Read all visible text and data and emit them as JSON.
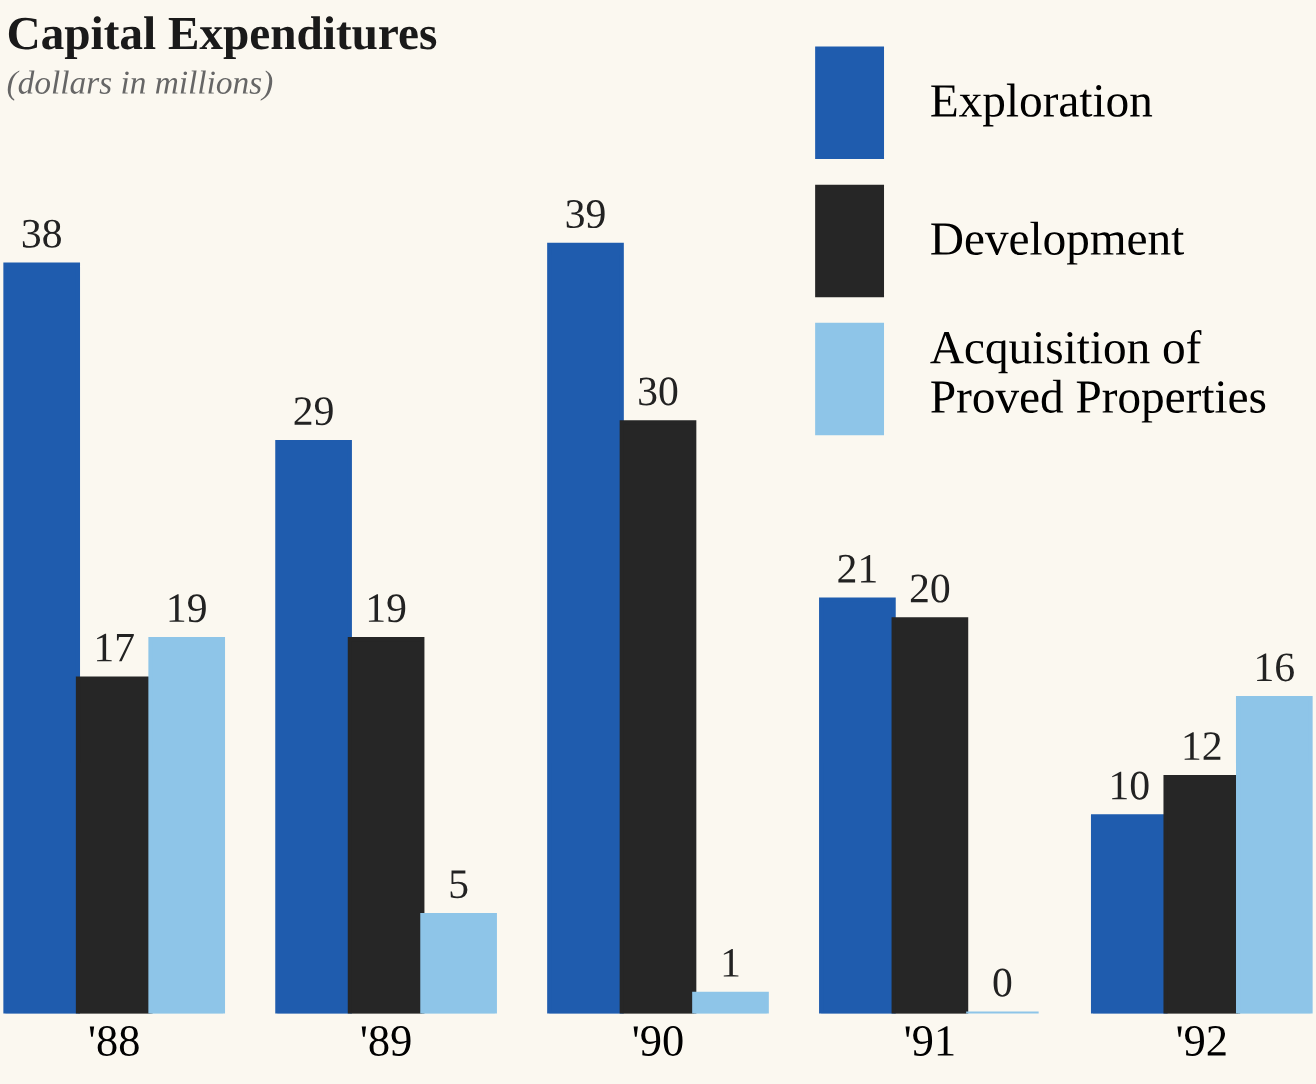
{
  "chart_data": {
    "type": "bar",
    "title": "Capital Expenditures",
    "subtitle": "(dollars in millions)",
    "categories": [
      "'88",
      "'89",
      "'90",
      "'91",
      "'92"
    ],
    "series": [
      {
        "name": "Exploration",
        "color": "#1f5cae",
        "values": [
          38,
          29,
          39,
          21,
          10
        ]
      },
      {
        "name": "Development",
        "color": "#262626",
        "values": [
          17,
          19,
          30,
          20,
          12
        ]
      },
      {
        "name": "Acquisition of\nProved Properties",
        "color": "#8ec5e8",
        "values": [
          19,
          5,
          1,
          0,
          16
        ]
      }
    ],
    "data_labels": true,
    "legend": "top right",
    "grid": false
  }
}
